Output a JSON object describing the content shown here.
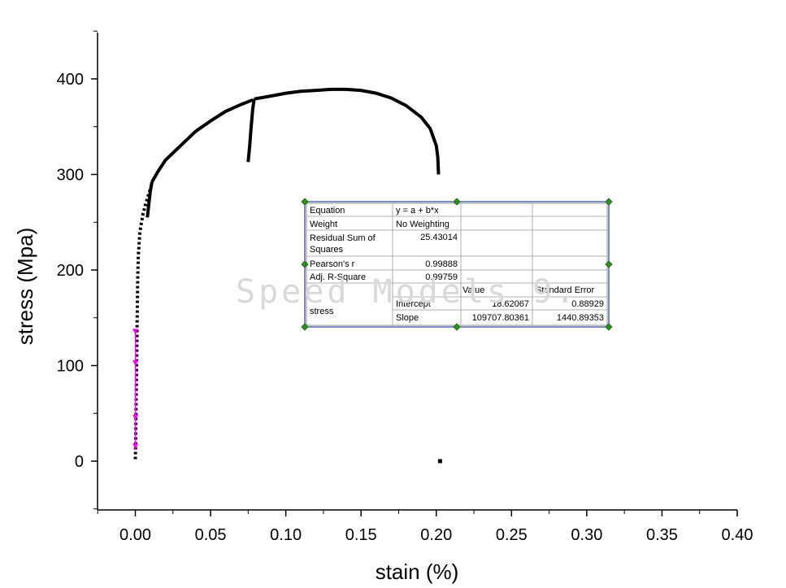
{
  "chart_data": {
    "type": "scatter",
    "xlabel": "stain (%)",
    "ylabel": "stress (Mpa)",
    "xlim": [
      -0.025,
      0.4
    ],
    "ylim": [
      -50,
      450
    ],
    "xticks": [
      0.0,
      0.05,
      0.1,
      0.15,
      0.2,
      0.25,
      0.3,
      0.35,
      0.4
    ],
    "xtick_labels": [
      "0.00",
      "0.05",
      "0.10",
      "0.15",
      "0.20",
      "0.25",
      "0.30",
      "0.35",
      "0.40"
    ],
    "yticks": [
      0,
      100,
      200,
      300,
      400
    ],
    "ytick_labels": [
      "0",
      "100",
      "200",
      "300",
      "400"
    ],
    "grid": false,
    "series": [
      {
        "color": "#000000",
        "style": "dense-dots",
        "segments": [
          [
            [
              0.0,
              2
            ],
            [
              0.0002,
              20
            ],
            [
              0.0004,
              45
            ],
            [
              0.0006,
              70
            ],
            [
              0.0008,
              95
            ],
            [
              0.001,
              120
            ],
            [
              0.0012,
              145
            ],
            [
              0.0014,
              170
            ],
            [
              0.0016,
              195
            ],
            [
              0.002,
              215
            ],
            [
              0.003,
              240
            ],
            [
              0.005,
              258
            ],
            [
              0.007,
              270
            ],
            [
              0.009,
              280
            ],
            [
              0.01,
              285
            ]
          ],
          [
            [
              0.008,
              255
            ],
            [
              0.009,
              270
            ],
            [
              0.01,
              283
            ],
            [
              0.011,
              292
            ]
          ],
          [
            [
              0.011,
              292
            ],
            [
              0.015,
              303
            ],
            [
              0.02,
              315
            ],
            [
              0.03,
              330
            ],
            [
              0.04,
              345
            ],
            [
              0.05,
              356
            ],
            [
              0.06,
              366
            ],
            [
              0.07,
              373
            ],
            [
              0.078,
              378
            ]
          ],
          [
            [
              0.075,
              313
            ],
            [
              0.076,
              330
            ],
            [
              0.077,
              350
            ],
            [
              0.078,
              368
            ],
            [
              0.079,
              379
            ]
          ],
          [
            [
              0.079,
              379
            ],
            [
              0.09,
              382
            ],
            [
              0.1,
              385
            ],
            [
              0.11,
              387
            ],
            [
              0.12,
              388
            ],
            [
              0.13,
              389
            ],
            [
              0.14,
              389
            ],
            [
              0.15,
              388
            ],
            [
              0.16,
              385
            ],
            [
              0.17,
              380
            ],
            [
              0.18,
              372
            ],
            [
              0.19,
              360
            ],
            [
              0.196,
              348
            ],
            [
              0.2,
              330
            ],
            [
              0.201,
              318
            ],
            [
              0.2015,
              300
            ]
          ],
          [
            [
              0.2025,
              0
            ]
          ]
        ]
      },
      {
        "color": "#ff00ff",
        "style": "fit-markers",
        "points": [
          [
            0.0,
            15
          ],
          [
            0.0,
            45
          ],
          [
            0.0,
            102
          ],
          [
            0.0,
            135
          ]
        ]
      }
    ],
    "fit_table": {
      "rows": [
        {
          "label": "Equation",
          "value": "y = a + b*x",
          "se": ""
        },
        {
          "label": "Weight",
          "value": "No Weighting",
          "se": ""
        },
        {
          "label": "Residual Sum of Squares",
          "label_line1": "Residual Sum of",
          "label_line2": "Squares",
          "value": "25.43014",
          "se": ""
        },
        {
          "label": "Pearson's r",
          "value": "0.99888",
          "se": ""
        },
        {
          "label": "Adj. R-Square",
          "value": "0.99759",
          "se": ""
        }
      ],
      "header": {
        "value": "Value",
        "se": "Standard Error"
      },
      "param_group": "stress",
      "params": [
        {
          "name": "Intercept",
          "value": "18.62067",
          "se": "0.88929"
        },
        {
          "name": "Slope",
          "value": "109707.80361",
          "se": "1440.89353"
        }
      ]
    },
    "watermark": "Speed Models 9."
  }
}
